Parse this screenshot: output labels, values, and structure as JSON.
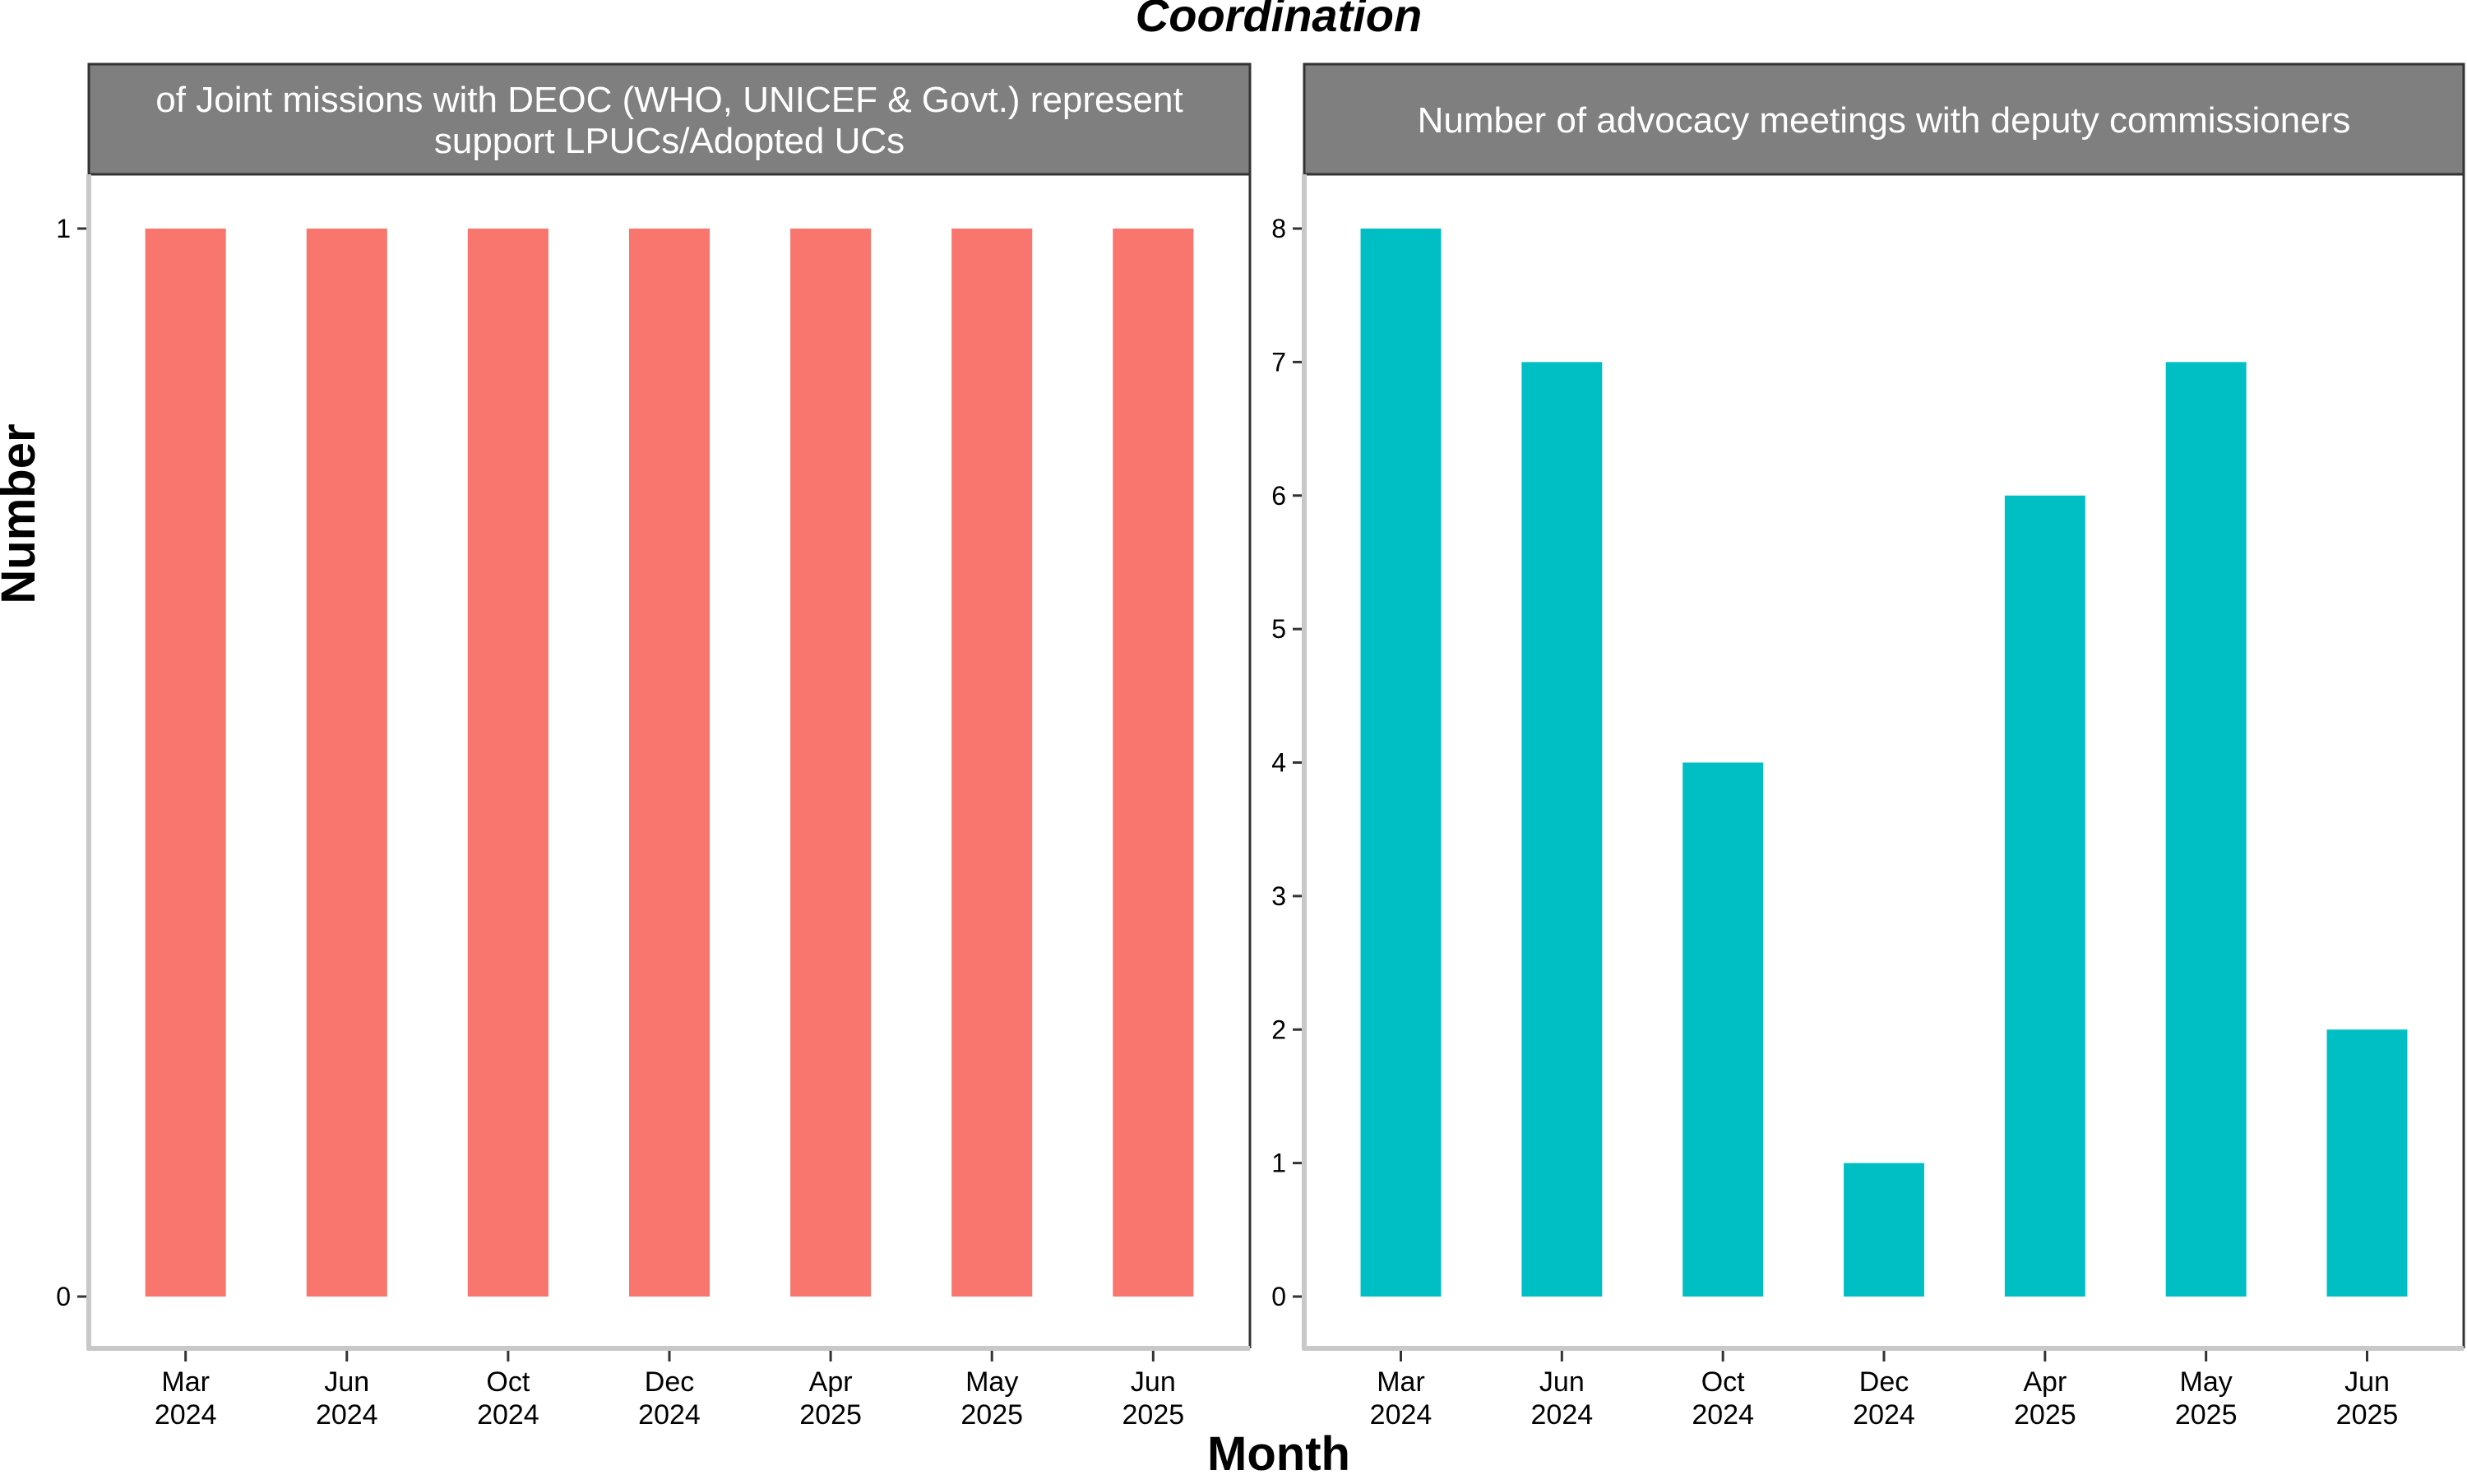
{
  "chart_data": {
    "title": "Coordination",
    "xlabel": "Month",
    "ylabel": "Number",
    "panels": [
      {
        "type": "bar",
        "strip_lines": [
          "of Joint missions with DEOC (WHO, UNICEF & Govt.) represent",
          "support LPUCs/Adopted UCs"
        ],
        "categories": [
          [
            "Mar",
            "2024"
          ],
          [
            "Jun",
            "2024"
          ],
          [
            "Oct",
            "2024"
          ],
          [
            "Dec",
            "2024"
          ],
          [
            "Apr",
            "2025"
          ],
          [
            "May",
            "2025"
          ],
          [
            "Jun",
            "2025"
          ]
        ],
        "values": [
          1,
          1,
          1,
          1,
          1,
          1,
          1
        ],
        "ylim": [
          0,
          1
        ],
        "yticks": [
          0,
          1
        ],
        "color": "#F8766D"
      },
      {
        "type": "bar",
        "strip_lines": [
          "Number of advocacy meetings with deputy commissioners"
        ],
        "categories": [
          [
            "Mar",
            "2024"
          ],
          [
            "Jun",
            "2024"
          ],
          [
            "Oct",
            "2024"
          ],
          [
            "Dec",
            "2024"
          ],
          [
            "Apr",
            "2025"
          ],
          [
            "May",
            "2025"
          ],
          [
            "Jun",
            "2025"
          ]
        ],
        "values": [
          8,
          7,
          4,
          1,
          6,
          7,
          2
        ],
        "ylim": [
          0,
          8
        ],
        "yticks": [
          0,
          1,
          2,
          3,
          4,
          5,
          6,
          7,
          8
        ],
        "color": "#00BFC4"
      }
    ],
    "grid": false,
    "legend": "none"
  }
}
